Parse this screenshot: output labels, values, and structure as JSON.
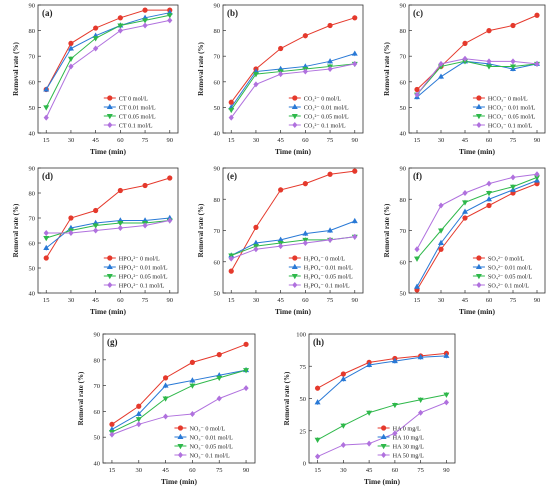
{
  "colors": {
    "c0": "#e5392c",
    "c1": "#2979d6",
    "c2": "#2eb84a",
    "c3": "#b071de"
  },
  "chart_data": [
    {
      "type": "line",
      "panel_label": "(a)",
      "x": [
        15,
        30,
        45,
        60,
        75,
        90
      ],
      "xlabel": "Time (min)",
      "ylabel": "Removal rate (%)",
      "ylim": [
        40,
        90
      ],
      "yticks": [
        40,
        50,
        60,
        70,
        80,
        90
      ],
      "legend_position": "bottom-right",
      "series": [
        {
          "name": "CT 0 mol/L",
          "values": [
            57,
            75,
            81,
            85,
            88,
            88
          ]
        },
        {
          "name": "CT 0.01 mol/L",
          "values": [
            57,
            73,
            78,
            82,
            85,
            87
          ]
        },
        {
          "name": "CT 0.05 mol/L",
          "values": [
            50,
            69,
            77,
            82,
            84,
            86
          ]
        },
        {
          "name": "CT 0.1 mol/L",
          "values": [
            46,
            66,
            73,
            80,
            82,
            84
          ]
        }
      ]
    },
    {
      "type": "line",
      "panel_label": "(b)",
      "x": [
        15,
        30,
        45,
        60,
        75,
        90
      ],
      "xlabel": "Time (min)",
      "ylabel": "Removal rate (%)",
      "ylim": [
        40,
        90
      ],
      "yticks": [
        40,
        50,
        60,
        70,
        80,
        90
      ],
      "legend_position": "bottom-right",
      "series": [
        {
          "name": "CO₃²⁻ 0 mol/L",
          "values": [
            52,
            65,
            73,
            78,
            82,
            85
          ]
        },
        {
          "name": "CO₃²⁻ 0.01 mol/L",
          "values": [
            50,
            64,
            65,
            66,
            68,
            71
          ]
        },
        {
          "name": "CO₃²⁻ 0.05 mol/L",
          "values": [
            49,
            63,
            64,
            65,
            66,
            67
          ]
        },
        {
          "name": "CO₃²⁻ 0.1 mol/L",
          "values": [
            46,
            59,
            63,
            64,
            65,
            67
          ]
        }
      ]
    },
    {
      "type": "line",
      "panel_label": "(c)",
      "x": [
        15,
        30,
        45,
        60,
        75,
        90
      ],
      "xlabel": "Time (min)",
      "ylabel": "Removal rate (%)",
      "ylim": [
        40,
        90
      ],
      "yticks": [
        40,
        50,
        60,
        70,
        80,
        90
      ],
      "legend_position": "bottom-right",
      "series": [
        {
          "name": "HCO₃⁻ 0 mol/L",
          "values": [
            57,
            66,
            75,
            80,
            82,
            86
          ]
        },
        {
          "name": "HCO₃⁻ 0.01 mol/L",
          "values": [
            54,
            62,
            68,
            67,
            65,
            67
          ]
        },
        {
          "name": "HCO₃⁻ 0.05 mol/L",
          "values": [
            55,
            66,
            68,
            66,
            66,
            67
          ]
        },
        {
          "name": "HCO₃⁻ 0.1 mol/L",
          "values": [
            55,
            67,
            69,
            68,
            68,
            67
          ]
        }
      ]
    },
    {
      "type": "line",
      "panel_label": "(d)",
      "x": [
        15,
        30,
        45,
        60,
        75,
        90
      ],
      "xlabel": "Time (min)",
      "ylabel": "Removal rate (%)",
      "ylim": [
        40,
        90
      ],
      "yticks": [
        40,
        50,
        60,
        70,
        80,
        90
      ],
      "legend_position": "bottom-right",
      "series": [
        {
          "name": "HPO₄²⁻ 0 mol/L",
          "values": [
            54,
            70,
            73,
            81,
            83,
            86
          ]
        },
        {
          "name": "HPO₄²⁻ 0.01 mol/L",
          "values": [
            58,
            66,
            68,
            69,
            69,
            70
          ]
        },
        {
          "name": "HPO₄²⁻ 0.05 mol/L",
          "values": [
            62,
            65,
            67,
            68,
            68,
            69
          ]
        },
        {
          "name": "HPO₄²⁻ 0.1 mol/L",
          "values": [
            64,
            64,
            65,
            66,
            67,
            69
          ]
        }
      ]
    },
    {
      "type": "line",
      "panel_label": "(e)",
      "x": [
        15,
        30,
        45,
        60,
        75,
        90
      ],
      "xlabel": "Time (min)",
      "ylabel": "Removal rate (%)",
      "ylim": [
        50,
        90
      ],
      "yticks": [
        50,
        60,
        70,
        80,
        90
      ],
      "legend_position": "bottom-right",
      "series": [
        {
          "name": "H₂PO₄⁻ 0 mol/L",
          "values": [
            57,
            71,
            83,
            85,
            88,
            89
          ]
        },
        {
          "name": "H₂PO₄⁻ 0.01 mol/L",
          "values": [
            62,
            66,
            67,
            69,
            70,
            73
          ]
        },
        {
          "name": "H₂PO₄⁻ 0.05 mol/L",
          "values": [
            62,
            65,
            66,
            67,
            67,
            68
          ]
        },
        {
          "name": "H₂PO₄⁻ 0.1 mol/L",
          "values": [
            61,
            64,
            65,
            66,
            67,
            68
          ]
        }
      ]
    },
    {
      "type": "line",
      "panel_label": "(f)",
      "x": [
        15,
        30,
        45,
        60,
        75,
        90
      ],
      "xlabel": "Time (min)",
      "ylabel": "Removal rate (%)",
      "ylim": [
        50,
        90
      ],
      "yticks": [
        50,
        60,
        70,
        80,
        90
      ],
      "legend_position": "bottom-right",
      "series": [
        {
          "name": "SO₄²⁻ 0 mol/L",
          "values": [
            51,
            64,
            74,
            78,
            82,
            85
          ]
        },
        {
          "name": "SO₄²⁻ 0.01 mol/L",
          "values": [
            52,
            66,
            76,
            80,
            83,
            86
          ]
        },
        {
          "name": "SO₄²⁻ 0.05 mol/L",
          "values": [
            61,
            70,
            79,
            82,
            84,
            87
          ]
        },
        {
          "name": "SO₄²⁻ 0.1 mol/L",
          "values": [
            64,
            78,
            82,
            85,
            87,
            88
          ]
        }
      ]
    },
    {
      "type": "line",
      "panel_label": "(g)",
      "x": [
        15,
        30,
        45,
        60,
        75,
        90
      ],
      "xlabel": "Time (min)",
      "ylabel": "Removal rate (%)",
      "ylim": [
        40,
        90
      ],
      "yticks": [
        40,
        50,
        60,
        70,
        80,
        90
      ],
      "legend_position": "bottom-right",
      "series": [
        {
          "name": "NO₃⁻ 0 mol/L",
          "values": [
            55,
            62,
            73,
            79,
            82,
            86
          ]
        },
        {
          "name": "NO₃⁻ 0.01 mol/L",
          "values": [
            53,
            59,
            70,
            72,
            74,
            76
          ]
        },
        {
          "name": "NO₃⁻ 0.05 mol/L",
          "values": [
            52,
            57,
            65,
            70,
            73,
            76
          ]
        },
        {
          "name": "NO₃⁻ 0.1 mol/L",
          "values": [
            51,
            55,
            58,
            59,
            65,
            69
          ]
        }
      ]
    },
    {
      "type": "line",
      "panel_label": "(h)",
      "x": [
        15,
        30,
        45,
        60,
        75,
        90
      ],
      "xlabel": "Time (min)",
      "ylabel": "Removal rate (%)",
      "ylim": [
        0,
        100
      ],
      "yticks": [
        0,
        25,
        50,
        75,
        100
      ],
      "legend_position": "bottom-right",
      "series": [
        {
          "name": "HA 0 mg/L",
          "values": [
            58,
            69,
            78,
            81,
            83,
            85
          ]
        },
        {
          "name": "HA 10 mg/L",
          "values": [
            47,
            65,
            76,
            79,
            82,
            83
          ]
        },
        {
          "name": "HA 30 mg/L",
          "values": [
            18,
            29,
            39,
            45,
            49,
            53
          ]
        },
        {
          "name": "HA 50 mg/L",
          "values": [
            5,
            14,
            15,
            23,
            39,
            47
          ]
        }
      ]
    }
  ]
}
